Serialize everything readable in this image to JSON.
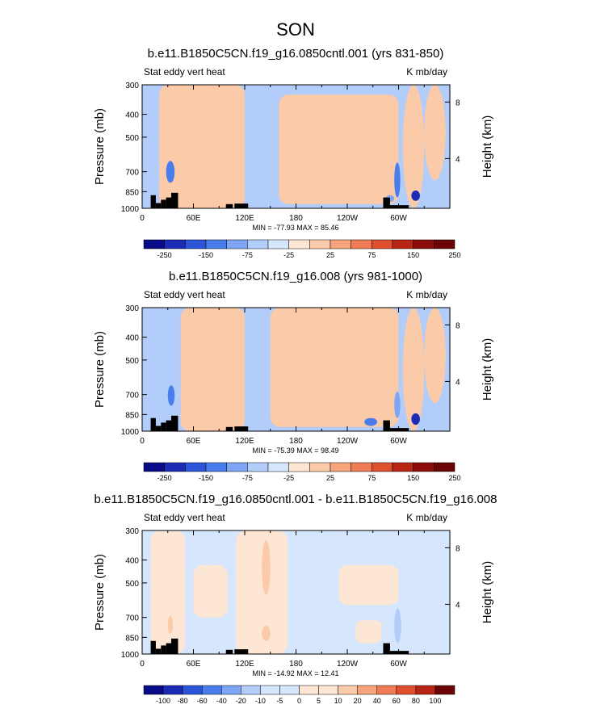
{
  "figure_title": "SON",
  "chart_data": [
    {
      "type": "heatmap",
      "title": "b.e11.B1850C5CN.f19_g16.0850cntl.001 (yrs 831-850)",
      "left_label": "Stat eddy vert heat",
      "right_label": "K mb/day",
      "ylabel": "Pressure (mb)",
      "ylabel_right": "Height (km)",
      "x_ticks": [
        "0",
        "60E",
        "120E",
        "180",
        "120W",
        "60W"
      ],
      "y_ticks": [
        "300",
        "400",
        "500",
        "700",
        "850",
        "1000"
      ],
      "height_ticks": [
        "8",
        "4"
      ],
      "xlim": [
        0,
        360
      ],
      "ylim": [
        1000,
        300
      ],
      "stats": "MIN = -77.93  MAX = 85.46",
      "min": -77.93,
      "max": 85.46,
      "colorbar_labels": [
        "-250",
        "-150",
        "-75",
        "-25",
        "25",
        "75",
        "150",
        "250"
      ],
      "background_value": -10,
      "regions": [
        {
          "lon": [
            20,
            120
          ],
          "p": [
            300,
            1000
          ],
          "v": 10
        },
        {
          "lon": [
            160,
            300
          ],
          "p": [
            330,
            960
          ],
          "v": 10
        },
        {
          "lon": [
            305,
            330
          ],
          "p": [
            300,
            1000
          ],
          "v": 10
        },
        {
          "lon": [
            330,
            355
          ],
          "p": [
            300,
            760
          ],
          "v": 10
        },
        {
          "lon": [
            28,
            38
          ],
          "p": [
            630,
            780
          ],
          "v": -50
        },
        {
          "lon": [
            35,
            42
          ],
          "p": [
            860,
            1000
          ],
          "v": 50
        },
        {
          "lon": [
            285,
            295
          ],
          "p": [
            880,
            940
          ],
          "v": -30
        },
        {
          "lon": [
            295,
            302
          ],
          "p": [
            640,
            900
          ],
          "v": -50
        },
        {
          "lon": [
            315,
            325
          ],
          "p": [
            840,
            930
          ],
          "v": -80
        }
      ]
    },
    {
      "type": "heatmap",
      "title": "b.e11.B1850C5CN.f19_g16.008 (yrs 981-1000)",
      "left_label": "Stat eddy vert heat",
      "right_label": "K mb/day",
      "ylabel": "Pressure (mb)",
      "ylabel_right": "Height (km)",
      "x_ticks": [
        "0",
        "60E",
        "120E",
        "180",
        "120W",
        "60W"
      ],
      "y_ticks": [
        "300",
        "400",
        "500",
        "700",
        "850",
        "1000"
      ],
      "height_ticks": [
        "8",
        "4"
      ],
      "xlim": [
        0,
        360
      ],
      "ylim": [
        1000,
        300
      ],
      "stats": "MIN = -75.39  MAX = 98.49",
      "min": -75.39,
      "max": 98.49,
      "colorbar_labels": [
        "-250",
        "-150",
        "-75",
        "-25",
        "25",
        "75",
        "150",
        "250"
      ],
      "background_value": -10,
      "regions": [
        {
          "lon": [
            45,
            120
          ],
          "p": [
            300,
            1000
          ],
          "v": 10
        },
        {
          "lon": [
            150,
            300
          ],
          "p": [
            300,
            960
          ],
          "v": 10
        },
        {
          "lon": [
            305,
            330
          ],
          "p": [
            300,
            1000
          ],
          "v": 10
        },
        {
          "lon": [
            330,
            355
          ],
          "p": [
            300,
            760
          ],
          "v": 10
        },
        {
          "lon": [
            30,
            38
          ],
          "p": [
            640,
            780
          ],
          "v": -50
        },
        {
          "lon": [
            36,
            42
          ],
          "p": [
            860,
            1000
          ],
          "v": 50
        },
        {
          "lon": [
            260,
            275
          ],
          "p": [
            880,
            950
          ],
          "v": -60
        },
        {
          "lon": [
            295,
            302
          ],
          "p": [
            680,
            880
          ],
          "v": -40
        },
        {
          "lon": [
            315,
            325
          ],
          "p": [
            840,
            940
          ],
          "v": -80
        }
      ]
    },
    {
      "type": "heatmap",
      "title": "b.e11.B1850C5CN.f19_g16.0850cntl.001 - b.e11.B1850C5CN.f19_g16.008",
      "left_label": "Stat eddy vert heat",
      "right_label": "K mb/day",
      "ylabel": "Pressure (mb)",
      "ylabel_right": "Height (km)",
      "x_ticks": [
        "0",
        "60E",
        "120E",
        "180",
        "120W",
        "60W"
      ],
      "y_ticks": [
        "300",
        "400",
        "500",
        "700",
        "850",
        "1000"
      ],
      "height_ticks": [
        "8",
        "4"
      ],
      "xlim": [
        0,
        360
      ],
      "ylim": [
        1000,
        300
      ],
      "stats": "MIN = -14.92  MAX = 12.41",
      "min": -14.92,
      "max": 12.41,
      "colorbar_labels": [
        "-100",
        "-80",
        "-60",
        "-40",
        "-20",
        "-10",
        "-5",
        "0",
        "5",
        "10",
        "20",
        "40",
        "60",
        "80",
        "100"
      ],
      "background_value": -3,
      "regions": [
        {
          "lon": [
            10,
            50
          ],
          "p": [
            300,
            1000
          ],
          "v": 3
        },
        {
          "lon": [
            60,
            100
          ],
          "p": [
            420,
            700
          ],
          "v": 3
        },
        {
          "lon": [
            110,
            170
          ],
          "p": [
            300,
            1000
          ],
          "v": 3
        },
        {
          "lon": [
            230,
            300
          ],
          "p": [
            420,
            620
          ],
          "v": 3
        },
        {
          "lon": [
            250,
            280
          ],
          "p": [
            720,
            900
          ],
          "v": 3
        },
        {
          "lon": [
            140,
            150
          ],
          "p": [
            330,
            560
          ],
          "v": 7
        },
        {
          "lon": [
            140,
            150
          ],
          "p": [
            760,
            880
          ],
          "v": 7
        },
        {
          "lon": [
            30,
            36
          ],
          "p": [
            690,
            820
          ],
          "v": 7
        },
        {
          "lon": [
            295,
            303
          ],
          "p": [
            640,
            900
          ],
          "v": -8
        }
      ]
    }
  ],
  "terrain": [
    {
      "lon": [
        10,
        16
      ],
      "p": 880
    },
    {
      "lon": [
        16,
        22
      ],
      "p": 950
    },
    {
      "lon": [
        22,
        28
      ],
      "p": 920
    },
    {
      "lon": [
        28,
        34
      ],
      "p": 900
    },
    {
      "lon": [
        34,
        42
      ],
      "p": 860
    },
    {
      "lon": [
        98,
        106
      ],
      "p": 960
    },
    {
      "lon": [
        108,
        124
      ],
      "p": 955
    },
    {
      "lon": [
        282,
        290
      ],
      "p": 900
    },
    {
      "lon": [
        290,
        312
      ],
      "p": 970
    }
  ],
  "colors": {
    "neg": [
      "#090a87",
      "#1c2bb5",
      "#2c55d9",
      "#4a7dec",
      "#7ea5f3",
      "#b3cdfa",
      "#d6e6fd"
    ],
    "pos": [
      "#fde6d4",
      "#fbcaa8",
      "#f7a47c",
      "#ef7c55",
      "#df4e2d",
      "#b82515",
      "#8c0d0a",
      "#6b0404"
    ],
    "terrain": "#000000"
  }
}
